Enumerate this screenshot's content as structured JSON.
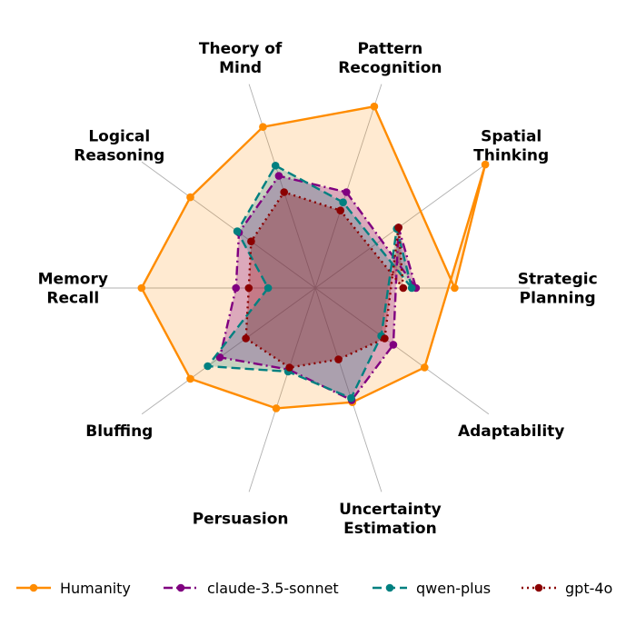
{
  "chart_data": {
    "type": "radar",
    "title": "",
    "axes": [
      [
        "Strategic",
        "Planning"
      ],
      [
        "Pattern",
        "Recognition"
      ],
      [
        "Theory of",
        "Mind"
      ],
      [
        "Logical",
        "Reasoning"
      ],
      [
        "Memory",
        "Recall"
      ],
      [
        "Bluffing"
      ],
      [
        "Persuasion"
      ],
      [
        "Uncertainty",
        "Estimation"
      ],
      [
        "Adaptability"
      ],
      [
        "Spatial",
        "Thinking"
      ]
    ],
    "axis_angles_deg": [
      0,
      72,
      108,
      144,
      180,
      216,
      252,
      288,
      324,
      36
    ],
    "rmax": 1.0,
    "grid": true,
    "legend_position": "bottom",
    "series": [
      {
        "name": "Humanity",
        "color": "#ff8c00",
        "linestyle": "solid",
        "fill": true,
        "values": [
          0.65,
          0.89,
          0.79,
          0.72,
          0.81,
          0.72,
          0.59,
          0.56,
          0.63,
          0.98
        ]
      },
      {
        "name": "claude-3.5-sonnet",
        "color": "#800080",
        "linestyle": "dashdot",
        "fill": true,
        "values": [
          0.47,
          0.47,
          0.55,
          0.44,
          0.37,
          0.55,
          0.4,
          0.55,
          0.45,
          0.48
        ]
      },
      {
        "name": "qwen-plus",
        "color": "#008080",
        "linestyle": "dashed",
        "fill": true,
        "values": [
          0.45,
          0.42,
          0.6,
          0.45,
          0.22,
          0.62,
          0.41,
          0.54,
          0.38,
          0.47
        ]
      },
      {
        "name": "gpt-4o",
        "color": "#8b0000",
        "linestyle": "dotted",
        "fill": true,
        "values": [
          0.41,
          0.38,
          0.47,
          0.37,
          0.31,
          0.4,
          0.39,
          0.35,
          0.4,
          0.48
        ]
      }
    ]
  }
}
